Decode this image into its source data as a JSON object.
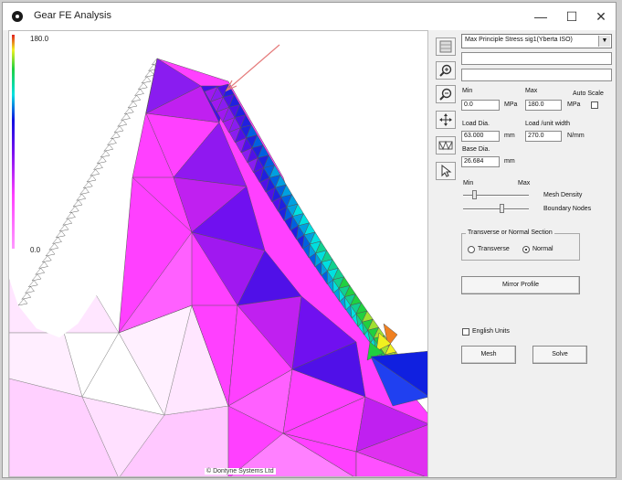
{
  "window": {
    "title": "Gear FE Analysis"
  },
  "titlebar": {
    "minimize": "—",
    "maximize": "☐",
    "close": "✕"
  },
  "canvas": {
    "scale_max": "180.0",
    "scale_min": "0.0",
    "copyright": "© Dontyne Systems Ltd"
  },
  "toolbar": {
    "tools": [
      "grid-tool",
      "zoom-in-icon",
      "zoom-out-icon",
      "pan-icon",
      "mesh-tool",
      "pointer-icon"
    ]
  },
  "panel": {
    "result_select": "Max Principle Stress sig1(Yberta ISO)",
    "min_label": "Min",
    "max_label": "Max",
    "auto_scale_label": "Auto Scale",
    "min_value": "0.0",
    "max_value": "180.0",
    "unit_mpa_1": "MPa",
    "unit_mpa_2": "MPa",
    "load_dia_label": "Load Dia.",
    "load_dia_value": "63.000",
    "load_dia_unit": "mm",
    "load_width_label": "Load /unit width",
    "load_width_value": "270.0",
    "load_width_unit": "N/mm",
    "base_dia_label": "Base Dia.",
    "base_dia_value": "26.684",
    "base_dia_unit": "mm",
    "slider_min_label": "Min",
    "slider_max_label": "Max",
    "mesh_density_label": "Mesh Density",
    "boundary_nodes_label": "Boundary Nodes",
    "mesh_density_level": 0.15,
    "boundary_nodes_level": 0.6,
    "section_group_title": "Transverse or Normal Section",
    "transverse_label": "Transverse",
    "normal_label": "Normal",
    "mirror_button": "Mirror Profile",
    "english_units_label": "English Units",
    "mesh_button": "Mesh",
    "solve_button": "Solve"
  },
  "colors": {
    "accent_pointer": "#e57b7b",
    "magenta": "#ff40ff",
    "violet": "#8a1cf0",
    "blue": "#2020e0",
    "cyan": "#00e0e0",
    "green": "#20d040",
    "yellow": "#f0f020"
  }
}
